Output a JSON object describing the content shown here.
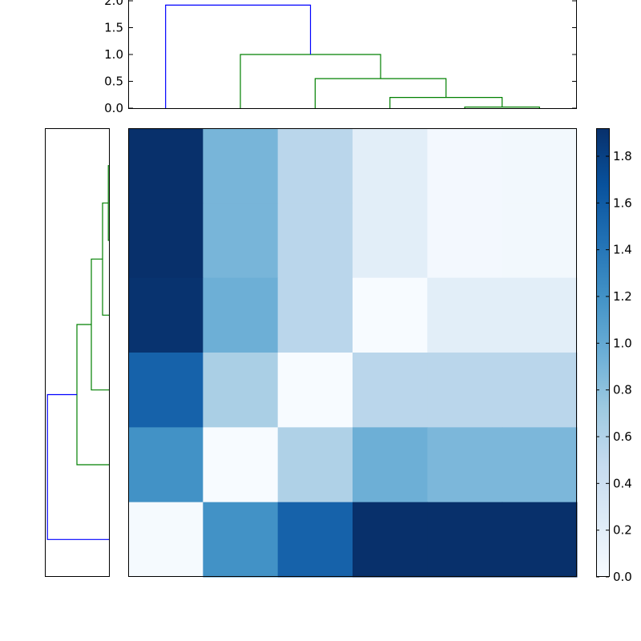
{
  "chart_data": [
    {
      "type": "dendrogram",
      "panel": "top",
      "orientation": "top",
      "ylim": [
        0,
        2.0
      ],
      "yticks": [
        0.0,
        0.5,
        1.0,
        1.5,
        2.0
      ],
      "ytick_labels": [
        "0.0",
        "0.5",
        "1.0",
        "1.5",
        "2.0"
      ],
      "leaves": 6,
      "links": [
        {
          "left": 4,
          "right": 5,
          "height": 0.02,
          "color": "#008000"
        },
        {
          "left": 3,
          "right": 4.5,
          "height": 0.2,
          "color": "#008000"
        },
        {
          "left": 2,
          "right": 3.75,
          "height": 0.55,
          "color": "#008000"
        },
        {
          "left": 1,
          "right": 2.875,
          "height": 1.0,
          "color": "#008000"
        },
        {
          "left": 0,
          "right": 1.9375,
          "height": 1.92,
          "color": "#0000ff"
        }
      ]
    },
    {
      "type": "dendrogram",
      "panel": "left",
      "orientation": "left",
      "leaves": 6,
      "links": [
        {
          "top": 0,
          "bottom": 1,
          "height": 0.02,
          "color": "#008000"
        },
        {
          "top": 0.5,
          "bottom": 2,
          "height": 0.2,
          "color": "#008000"
        },
        {
          "top": 1.25,
          "bottom": 3,
          "height": 0.55,
          "color": "#008000"
        },
        {
          "top": 2.125,
          "bottom": 4,
          "height": 1.0,
          "color": "#008000"
        },
        {
          "top": 3.0625,
          "bottom": 5,
          "height": 1.92,
          "color": "#0000ff"
        }
      ]
    },
    {
      "type": "heatmap",
      "panel": "main",
      "colormap": "Blues",
      "vmin": 0.0,
      "vmax": 1.92,
      "values": [
        [
          1.92,
          0.9,
          0.55,
          0.2,
          0.04,
          0.05
        ],
        [
          1.92,
          0.9,
          0.55,
          0.2,
          0.04,
          0.05
        ],
        [
          1.9,
          0.95,
          0.55,
          0.0,
          0.2,
          0.2
        ],
        [
          1.55,
          0.65,
          0.0,
          0.55,
          0.55,
          0.55
        ],
        [
          1.2,
          0.0,
          0.62,
          0.95,
          0.88,
          0.88
        ],
        [
          0.02,
          1.2,
          1.55,
          1.92,
          1.92,
          1.92
        ]
      ]
    },
    {
      "type": "colorbar",
      "panel": "colorbar",
      "colormap": "Blues",
      "vmin": 0.0,
      "vmax": 1.92,
      "ticks": [
        0.0,
        0.2,
        0.4,
        0.6,
        0.8,
        1.0,
        1.2,
        1.4,
        1.6,
        1.8
      ],
      "tick_labels": [
        "0.0",
        "0.2",
        "0.4",
        "0.6",
        "0.8",
        "1.0",
        "1.2",
        "1.4",
        "1.6",
        "1.8"
      ]
    }
  ]
}
